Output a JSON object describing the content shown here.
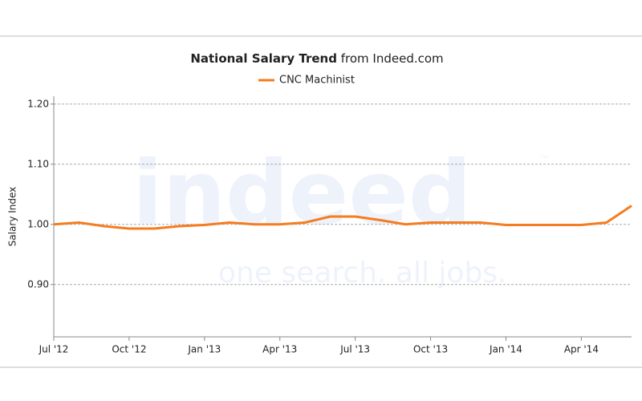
{
  "chart_data": {
    "type": "line",
    "title": "National Salary Trend",
    "title_source": "from Indeed.com",
    "y_label": "Salary Index",
    "watermark": {
      "logo": "indeed",
      "tagline": "one search. all jobs.",
      "mark": "™"
    },
    "categories": [
      "Jul '12",
      null,
      null,
      "Oct '12",
      null,
      null,
      "Jan '13",
      null,
      null,
      "Apr '13",
      null,
      null,
      "Jul '13",
      null,
      null,
      "Oct '13",
      null,
      null,
      "Jan '14",
      null,
      null,
      "Apr '14",
      null,
      null
    ],
    "series": [
      {
        "name": "CNC Machinist",
        "color": "#f57c1f",
        "values": [
          1.0,
          1.003,
          0.997,
          0.993,
          0.993,
          0.997,
          0.999,
          1.003,
          1.0,
          1.0,
          1.003,
          1.013,
          1.013,
          1.007,
          1.0,
          1.003,
          1.003,
          1.003,
          0.999,
          0.999,
          0.999,
          0.999,
          1.003,
          1.031
        ]
      }
    ],
    "ylim": [
      0.813,
      1.213
    ],
    "yticks": [
      {
        "value": 0.9,
        "label": "0.90"
      },
      {
        "value": 1.0,
        "label": "1.00"
      },
      {
        "value": 1.1,
        "label": "1.10"
      },
      {
        "value": 1.2,
        "label": "1.20"
      }
    ],
    "grid": true,
    "legend": "top"
  }
}
